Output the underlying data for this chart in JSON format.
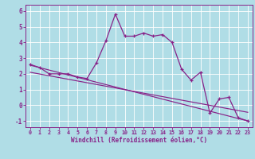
{
  "xlabel": "Windchill (Refroidissement éolien,°C)",
  "background_color": "#b0dde6",
  "line_color": "#882288",
  "x_values": [
    0,
    1,
    2,
    3,
    4,
    5,
    6,
    7,
    8,
    9,
    10,
    11,
    12,
    13,
    14,
    15,
    16,
    17,
    18,
    19,
    20,
    21,
    22,
    23
  ],
  "temp_values": [
    2.6,
    2.4,
    2.0,
    2.0,
    2.0,
    1.8,
    1.7,
    2.7,
    4.1,
    5.8,
    4.4,
    4.4,
    4.6,
    4.4,
    4.5,
    4.0,
    2.3,
    1.6,
    2.1,
    -0.5,
    0.4,
    0.5,
    -0.8,
    -1.0
  ],
  "line1_x": [
    0,
    23
  ],
  "line1_y": [
    2.55,
    -1.0
  ],
  "line2_x": [
    0,
    23
  ],
  "line2_y": [
    2.1,
    -0.45
  ],
  "ylim": [
    -1.4,
    6.4
  ],
  "xlim": [
    -0.5,
    23.5
  ],
  "yticks": [
    -1,
    0,
    1,
    2,
    3,
    4,
    5,
    6
  ],
  "xticks": [
    0,
    1,
    2,
    3,
    4,
    5,
    6,
    7,
    8,
    9,
    10,
    11,
    12,
    13,
    14,
    15,
    16,
    17,
    18,
    19,
    20,
    21,
    22,
    23
  ],
  "grid_color": "#c8eef5",
  "spine_color": "#882288"
}
